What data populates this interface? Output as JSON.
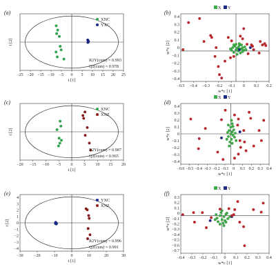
{
  "chart_data": [
    {
      "panel": "(a)",
      "type": "scatter",
      "kind": "scores",
      "xlabel": "t [1]",
      "ylabel": "t [2]",
      "xlim": [
        -25,
        25
      ],
      "ylim": [
        -4,
        4
      ],
      "xticks": [
        "−25",
        "−20",
        "−15",
        "−10",
        "−5",
        "0",
        "5",
        "10",
        "15",
        "20",
        "25"
      ],
      "yticks": [],
      "ellipse": true,
      "legend_position": "top-right",
      "series": [
        {
          "name": "XNC",
          "color": "#2fa84f",
          "points": [
            [
              -7.5,
              2.3
            ],
            [
              -6.8,
              1.7
            ],
            [
              -7.3,
              1.2
            ],
            [
              -6.0,
              0.8
            ],
            [
              -5.6,
              -0.6
            ],
            [
              -5.1,
              -1.1
            ],
            [
              -7.6,
              -1.4
            ],
            [
              -7.0,
              -2.1
            ],
            [
              -3.8,
              -2.4
            ]
          ]
        },
        {
          "name": "YXC",
          "color": "#1c2a8a",
          "points": [
            [
              7.7,
              0.3
            ],
            [
              7.9,
              0.2
            ],
            [
              8.1,
              0.1
            ],
            [
              7.8,
              -0.05
            ],
            [
              8.0,
              0.0
            ]
          ]
        }
      ],
      "stats": [
        "R2Y(cum) = 0.993",
        "Q2(cum) = 0.978"
      ]
    },
    {
      "panel": "(b)",
      "type": "scatter",
      "kind": "loadings",
      "xlabel": "w*c [1]",
      "ylabel": "w*c [2]",
      "xlim": [
        -0.5,
        0.3
      ],
      "ylim": [
        -0.45,
        0.55
      ],
      "xticks": [
        "−0.5",
        "−0.4",
        "−0.3",
        "−0.2",
        "−0.1",
        "0",
        "0.1",
        "0.2"
      ],
      "yticks": [
        "0.4",
        "0.3",
        "0.2",
        "0.1",
        "0",
        "−0.1",
        "−0.2",
        "−0.3",
        "−0.4"
      ],
      "ellipse": false,
      "legend_position": "top-center",
      "legend": [
        {
          "label": "X",
          "color": "#3fae49"
        },
        {
          "label": "Y",
          "color": "#1c2a8a"
        }
      ],
      "series": [
        {
          "name": "X",
          "color": "#3fae49",
          "points": [
            [
              -0.03,
              0.05
            ],
            [
              -0.01,
              0.07
            ],
            [
              0.01,
              0.04
            ],
            [
              0.03,
              0.08
            ],
            [
              0.05,
              0.03
            ],
            [
              0.02,
              0.0
            ],
            [
              -0.02,
              -0.02
            ],
            [
              0.0,
              0.02
            ],
            [
              0.04,
              -0.03
            ],
            [
              0.06,
              0.05
            ],
            [
              -0.04,
              0.01
            ],
            [
              0.07,
              0.01
            ],
            [
              0.03,
              0.11
            ],
            [
              0.0,
              0.1
            ],
            [
              0.05,
              0.09
            ],
            [
              0.08,
              0.06
            ],
            [
              0.01,
              -0.05
            ],
            [
              0.02,
              0.05
            ],
            [
              -0.05,
              0.03
            ],
            [
              0.09,
              0.02
            ],
            [
              0.06,
              -0.01
            ],
            [
              -0.02,
              0.09
            ],
            [
              0.04,
              0.03
            ]
          ]
        },
        {
          "name": "Y",
          "color": "#1c2a8a",
          "points": [
            [
              0.03,
              0.02
            ],
            [
              0.13,
              0.05
            ]
          ]
        },
        {
          "name": "Y (variables)",
          "color": "#c0272d",
          "points": [
            [
              -0.43,
              0.42
            ],
            [
              -0.33,
              0.48
            ],
            [
              -0.23,
              0.23
            ],
            [
              -0.22,
              0.2
            ],
            [
              -0.29,
              0.14
            ],
            [
              -0.18,
              0.05
            ],
            [
              -0.48,
              0.02
            ],
            [
              -0.19,
              -0.08
            ],
            [
              -0.16,
              -0.23
            ],
            [
              -0.15,
              -0.35
            ],
            [
              -0.13,
              -0.4
            ],
            [
              -0.1,
              -0.15
            ],
            [
              -0.05,
              -0.1
            ],
            [
              0.07,
              0.33
            ],
            [
              0.06,
              0.18
            ],
            [
              -0.07,
              0.2
            ],
            [
              0.04,
              0.22
            ],
            [
              0.1,
              0.1
            ],
            [
              0.14,
              0.09
            ],
            [
              0.15,
              0.07
            ],
            [
              0.22,
              0.14
            ],
            [
              0.26,
              0.11
            ],
            [
              0.27,
              0.08
            ],
            [
              0.21,
              -0.03
            ],
            [
              0.11,
              -0.04
            ],
            [
              -0.02,
              -0.08
            ],
            [
              -0.04,
              0.15
            ],
            [
              0.24,
              0.09
            ],
            [
              0.16,
              0.02
            ]
          ]
        }
      ]
    },
    {
      "panel": "(c)",
      "type": "scatter",
      "kind": "scores",
      "xlabel": "t [1]",
      "ylabel": "t [2]",
      "xlim": [
        -20,
        20
      ],
      "ylim": [
        -4,
        4
      ],
      "xticks": [
        "−20",
        "−15",
        "−10",
        "−5",
        "0",
        "5",
        "10",
        "15",
        "20"
      ],
      "yticks": [],
      "ellipse": true,
      "legend_position": "top-right",
      "series": [
        {
          "name": "XNC",
          "color": "#2fa84f",
          "points": [
            [
              -4.5,
              1.5
            ],
            [
              -4.2,
              0.8
            ],
            [
              -5.7,
              0.3
            ],
            [
              -4.9,
              -0.9
            ],
            [
              -4.0,
              -1.2
            ],
            [
              -4.6,
              -1.6
            ],
            [
              -5.1,
              -2.0
            ]
          ]
        },
        {
          "name": "XNZ",
          "color": "#8b1a1a",
          "points": [
            [
              5.1,
              2.8
            ],
            [
              4.6,
              1.9
            ],
            [
              6.0,
              0.6
            ],
            [
              5.2,
              -0.5
            ],
            [
              6.8,
              -1.6
            ],
            [
              7.3,
              -2.6
            ],
            [
              4.3,
              2.3
            ]
          ]
        }
      ],
      "stats": [
        "R2Y(cum) = 0.987",
        "Q2(cum) = 0.965"
      ]
    },
    {
      "panel": "(d)",
      "type": "scatter",
      "kind": "loadings",
      "xlabel": "w*c [1]",
      "ylabel": "w*c [2]",
      "xlim": [
        -0.65,
        0.5
      ],
      "ylim": [
        -0.45,
        0.45
      ],
      "xticks": [
        "−0.6",
        "−0.5",
        "−0.4",
        "−0.3",
        "−0.2",
        "−0.1",
        "0",
        "0.1",
        "0.2",
        "0.3",
        "0.4"
      ],
      "yticks": [
        "0.4",
        "0.3",
        "0.2",
        "0.1",
        "0",
        "−0.1",
        "−0.2",
        "−0.3",
        "−0.4"
      ],
      "ellipse": false,
      "legend_position": "top-center",
      "legend": [
        {
          "label": "X",
          "color": "#3fae49"
        },
        {
          "label": "Y",
          "color": "#1c2a8a"
        }
      ],
      "series": [
        {
          "name": "X",
          "color": "#3fae49",
          "points": [
            [
              -0.02,
              0.05
            ],
            [
              0.0,
              0.1
            ],
            [
              0.02,
              0.03
            ],
            [
              0.03,
              -0.02
            ],
            [
              -0.03,
              -0.04
            ],
            [
              0.01,
              -0.08
            ],
            [
              0.04,
              0.06
            ],
            [
              -0.01,
              -0.12
            ],
            [
              0.02,
              0.15
            ],
            [
              0.05,
              -0.05
            ],
            [
              -0.04,
              0.02
            ],
            [
              0.0,
              0.0
            ],
            [
              0.03,
              0.11
            ],
            [
              -0.02,
              -0.18
            ],
            [
              0.06,
              0.01
            ],
            [
              0.01,
              0.2
            ],
            [
              -0.05,
              -0.08
            ],
            [
              0.02,
              -0.14
            ],
            [
              0.07,
              -0.1
            ],
            [
              -0.03,
              0.13
            ]
          ]
        },
        {
          "name": "Y",
          "color": "#1c2a8a",
          "points": [
            [
              -0.12,
              -0.06
            ],
            [
              0.12,
              0.03
            ]
          ]
        },
        {
          "name": "Y (variables)",
          "color": "#c0272d",
          "points": [
            [
              -0.52,
              0.22
            ],
            [
              -0.33,
              0.08
            ],
            [
              -0.41,
              -0.07
            ],
            [
              -0.42,
              -0.22
            ],
            [
              -0.17,
              -0.27
            ],
            [
              -0.12,
              0.21
            ],
            [
              -0.07,
              0.35
            ],
            [
              0.05,
              0.28
            ],
            [
              0.1,
              0.22
            ],
            [
              0.09,
              0.13
            ],
            [
              0.12,
              -0.1
            ],
            [
              0.18,
              -0.12
            ],
            [
              0.13,
              -0.2
            ],
            [
              0.2,
              -0.25
            ],
            [
              0.3,
              -0.18
            ],
            [
              0.37,
              0.05
            ],
            [
              0.4,
              -0.1
            ],
            [
              0.43,
              0.2
            ],
            [
              0.26,
              0.23
            ],
            [
              0.24,
              0.32
            ],
            [
              -0.1,
              -0.38
            ],
            [
              0.1,
              -0.3
            ],
            [
              0.05,
              -0.36
            ],
            [
              0.17,
              0.05
            ]
          ]
        }
      ]
    },
    {
      "panel": "(e)",
      "type": "scatter",
      "kind": "scores",
      "xlabel": "t [1]",
      "ylabel": "t [2]",
      "xlim": [
        -30,
        30
      ],
      "ylim": [
        -5,
        5
      ],
      "xticks": [
        "−30",
        "−20",
        "−10",
        "0",
        "10",
        "20",
        "30"
      ],
      "yticks": [
        "4",
        "3",
        "2",
        "1",
        "0",
        "−1",
        "−2",
        "−3",
        "−4"
      ],
      "ellipse": true,
      "legend_position": "top-right",
      "series": [
        {
          "name": "YXC",
          "color": "#1c2a8a",
          "points": [
            [
              -9.5,
              -0.1
            ],
            [
              -9.2,
              0.0
            ],
            [
              -9.0,
              -0.2
            ],
            [
              -9.3,
              0.1
            ],
            [
              -8.8,
              -0.1
            ]
          ]
        },
        {
          "name": "XNZ",
          "color": "#8b1a1a",
          "points": [
            [
              8.3,
              2.5
            ],
            [
              9.0,
              2.3
            ],
            [
              9.8,
              1.3
            ],
            [
              10.1,
              0.8
            ],
            [
              9.5,
              -1.0
            ],
            [
              10.6,
              -2.1
            ],
            [
              9.2,
              -2.8
            ]
          ]
        }
      ],
      "stats": [
        "R2Y(cum) = 0.996",
        "Q2(cum) = 0.991"
      ]
    },
    {
      "panel": "(f)",
      "type": "scatter",
      "kind": "loadings",
      "xlabel": "w*c [1]",
      "ylabel": "w*c [2]",
      "xlim": [
        -0.42,
        0.48
      ],
      "ylim": [
        -0.75,
        0.42
      ],
      "xticks": [
        "−0.4",
        "−0.3",
        "−0.2",
        "−0.1",
        "0",
        "0.1",
        "0.2",
        "0.3",
        "0.4"
      ],
      "yticks": [
        "0.3",
        "0.2",
        "0.1",
        "0",
        "−0.1",
        "−0.2",
        "−0.3",
        "−0.4",
        "−0.5",
        "−0.6",
        "−0.7"
      ],
      "ellipse": false,
      "legend_position": "top-center",
      "legend": [
        {
          "label": "X",
          "color": "#3fae49"
        },
        {
          "label": "Y",
          "color": "#1c2a8a"
        }
      ],
      "series": [
        {
          "name": "X",
          "color": "#3fae49",
          "points": [
            [
              -0.05,
              -0.05
            ],
            [
              -0.02,
              0.0
            ],
            [
              0.0,
              -0.08
            ],
            [
              0.02,
              -0.02
            ],
            [
              0.04,
              0.03
            ],
            [
              -0.04,
              -0.12
            ],
            [
              0.01,
              -0.15
            ],
            [
              0.03,
              -0.1
            ],
            [
              -0.01,
              0.06
            ],
            [
              0.06,
              -0.06
            ],
            [
              -0.07,
              -0.08
            ],
            [
              0.05,
              0.05
            ],
            [
              0.02,
              -0.2
            ],
            [
              -0.02,
              -0.17
            ],
            [
              0.08,
              -0.02
            ],
            [
              0.0,
              0.1
            ],
            [
              -0.06,
              0.02
            ],
            [
              0.04,
              -0.13
            ]
          ]
        },
        {
          "name": "Y",
          "color": "#1c2a8a",
          "points": [
            [
              -0.12,
              -0.1
            ],
            [
              0.1,
              -0.02
            ]
          ]
        },
        {
          "name": "Y (variables)",
          "color": "#c0272d",
          "points": [
            [
              -0.4,
              0.02
            ],
            [
              -0.29,
              0.06
            ],
            [
              -0.28,
              -0.13
            ],
            [
              -0.2,
              0.06
            ],
            [
              -0.16,
              -0.24
            ],
            [
              -0.11,
              -0.04
            ],
            [
              0.1,
              0.0
            ],
            [
              0.12,
              0.02
            ],
            [
              0.13,
              0.12
            ],
            [
              0.16,
              0.28
            ],
            [
              0.18,
              -0.13
            ],
            [
              0.22,
              -0.22
            ],
            [
              0.23,
              -0.6
            ],
            [
              0.32,
              0.12
            ],
            [
              0.4,
              0.07
            ],
            [
              0.42,
              0.25
            ],
            [
              -0.02,
              0.13
            ],
            [
              0.07,
              0.14
            ]
          ]
        }
      ]
    }
  ]
}
